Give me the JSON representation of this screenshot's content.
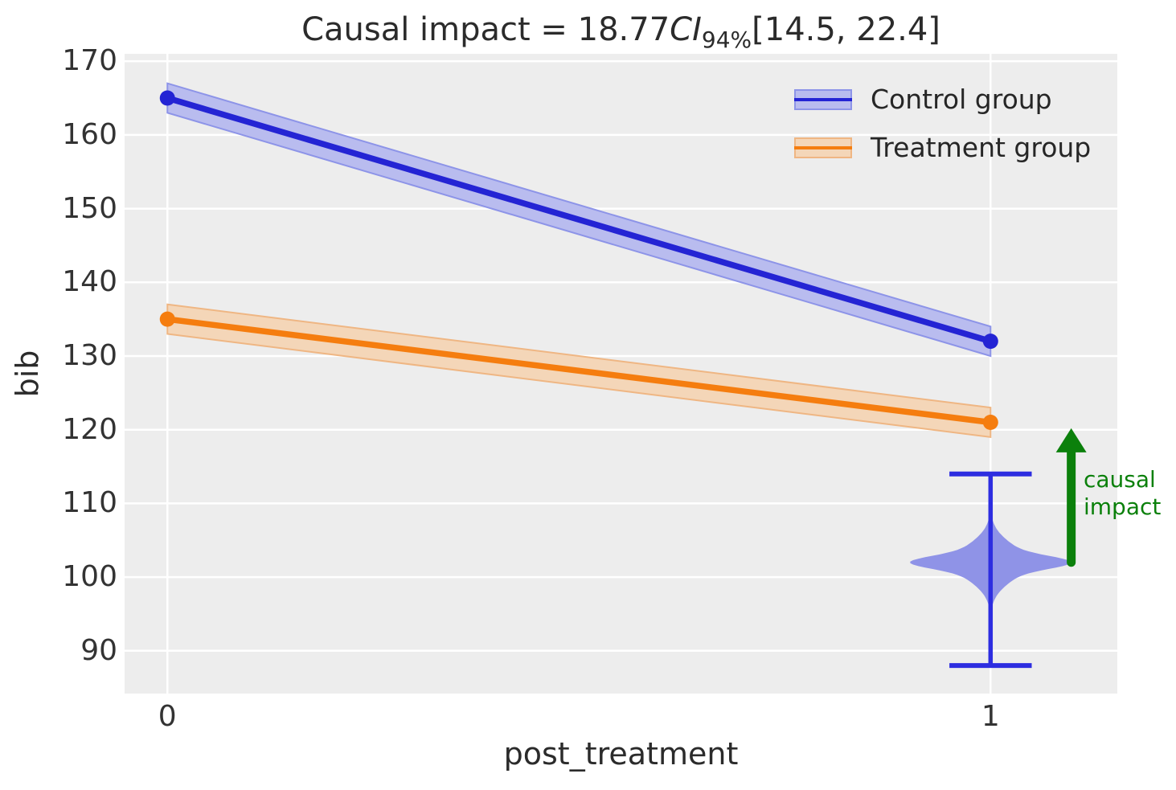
{
  "title": {
    "prefix": "Causal impact = 18.77",
    "ci": "CI",
    "ci_sub": "94%",
    "interval": "[14.5, 22.4]"
  },
  "axes": {
    "xlabel": "post_treatment",
    "ylabel": "bib"
  },
  "legend": [
    {
      "label": "Control group",
      "line_color": "#2424d4",
      "band_color": "#b9bcef",
      "edge_color": "#8d94e8"
    },
    {
      "label": "Treatment group",
      "line_color": "#f57d0f",
      "band_color": "#f4d6b8",
      "edge_color": "#efb683"
    }
  ],
  "annotation": {
    "line1": "causal",
    "line2": "impact",
    "color": "#0b800b"
  },
  "colors": {
    "figure_bg": "#ffffff",
    "plot_bg": "#ededed",
    "grid": "#ffffff",
    "control_blue": "#2424d4",
    "treatment_orange": "#f57d0f",
    "violin_fill": "#8a8fe6",
    "impact_green": "#0b800b",
    "text": "#2b2b2b"
  },
  "chart_data": {
    "type": "line",
    "title": "Causal impact = 18.77 CI94% [14.5, 22.4]",
    "xlabel": "post_treatment",
    "ylabel": "bib",
    "x": [
      0,
      1
    ],
    "series": [
      {
        "name": "Control group",
        "values": [
          165,
          132
        ],
        "ci_low": [
          163,
          130
        ],
        "ci_high": [
          167,
          134
        ],
        "color": "#2424d4",
        "band_color": "#b9bcef",
        "band_edge": "#8d94e8"
      },
      {
        "name": "Treatment group",
        "values": [
          135,
          121
        ],
        "ci_low": [
          133,
          119
        ],
        "ci_high": [
          137,
          123
        ],
        "color": "#f57d0f",
        "band_color": "#f4d6b8",
        "band_edge": "#efb683"
      }
    ],
    "causal_impact": {
      "estimate": 18.77,
      "ci_level": "94%",
      "ci": [
        14.5,
        22.4
      ]
    },
    "counterfactual_violin": {
      "x": 1,
      "mean": 102,
      "whisker_low": 88,
      "whisker_high": 114,
      "halfwidth_x": 0.098,
      "cap_halfwidth_x": 0.05,
      "fill": "#8a8fe6",
      "line_color": "#2d2de0"
    },
    "impact_arrow": {
      "x": 1.098,
      "from": 102,
      "to": 120.2,
      "color": "#0b800b",
      "label": "causal impact"
    },
    "xticks": {
      "values": [
        0,
        1
      ],
      "labels": [
        "0",
        "1"
      ]
    },
    "yticks": {
      "values": [
        170,
        160,
        150,
        140,
        130,
        120,
        110,
        100,
        90
      ],
      "labels": [
        "170",
        "160",
        "150",
        "140",
        "130",
        "120",
        "110",
        "100",
        "90"
      ]
    },
    "x_range": [
      -0.052,
      1.154
    ],
    "y_range": [
      84.2,
      171.0
    ],
    "grid": true,
    "legend_position": "upper right"
  }
}
